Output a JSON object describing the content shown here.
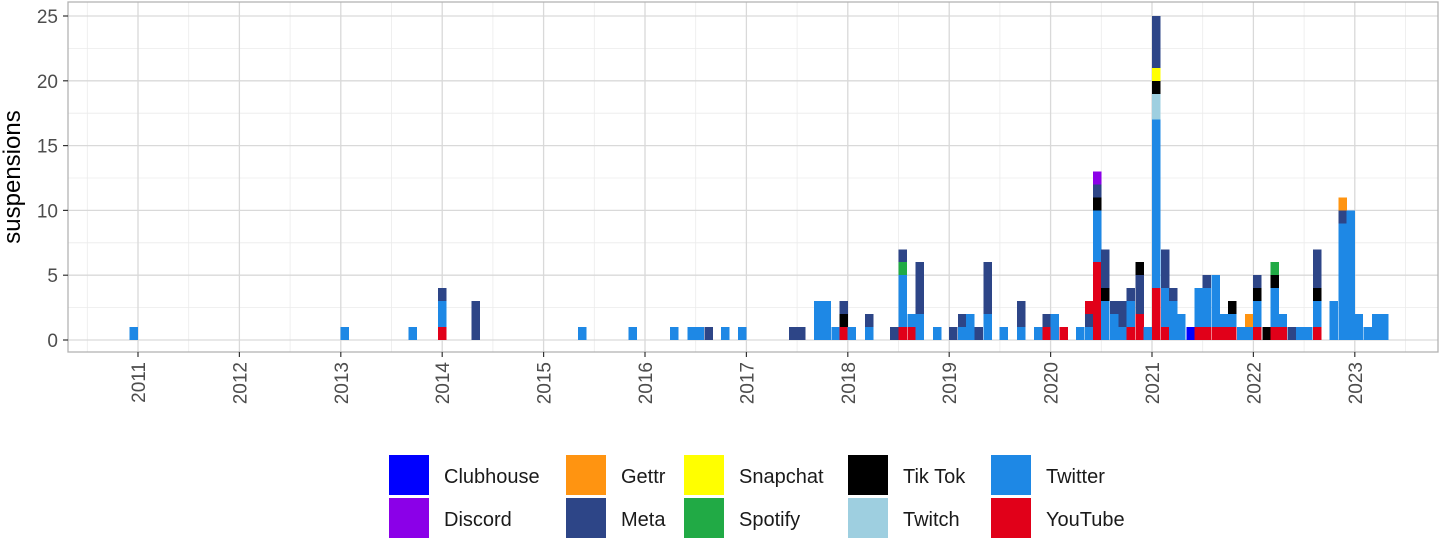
{
  "chart_data": {
    "type": "bar",
    "stacked": true,
    "title": "",
    "xlabel": "",
    "ylabel": "suspensions",
    "ylim": [
      0,
      25
    ],
    "xlim": [
      2010.4,
      2023.8
    ],
    "y_ticks": [
      "0",
      "5",
      "10",
      "15",
      "20",
      "25"
    ],
    "x_ticks": [
      "2011",
      "2012",
      "2013",
      "2014",
      "2015",
      "2016",
      "2017",
      "2018",
      "2019",
      "2020",
      "2021",
      "2022",
      "2023"
    ],
    "grid": true,
    "legend_position": "bottom",
    "platforms": [
      {
        "name": "Clubhouse",
        "color": "#0000ff"
      },
      {
        "name": "Discord",
        "color": "#8b00e8"
      },
      {
        "name": "Gettr",
        "color": "#ff9411"
      },
      {
        "name": "Meta",
        "color": "#2d4587"
      },
      {
        "name": "Snapchat",
        "color": "#ffff00"
      },
      {
        "name": "Spotify",
        "color": "#21aa45"
      },
      {
        "name": "Tik Tok",
        "color": "#000000"
      },
      {
        "name": "Twitch",
        "color": "#9ecfe0"
      },
      {
        "name": "Twitter",
        "color": "#1e88e5"
      },
      {
        "name": "YouTube",
        "color": "#e10019"
      }
    ],
    "bars": [
      {
        "x": 2010.96,
        "stack": [
          [
            "Twitter",
            1
          ]
        ]
      },
      {
        "x": 2013.04,
        "stack": [
          [
            "Twitter",
            1
          ]
        ]
      },
      {
        "x": 2013.71,
        "stack": [
          [
            "Twitter",
            1
          ]
        ]
      },
      {
        "x": 2014.0,
        "stack": [
          [
            "YouTube",
            1
          ],
          [
            "Twitter",
            2
          ],
          [
            "Meta",
            1
          ]
        ]
      },
      {
        "x": 2014.33,
        "stack": [
          [
            "Meta",
            3
          ]
        ]
      },
      {
        "x": 2015.38,
        "stack": [
          [
            "Twitter",
            1
          ]
        ]
      },
      {
        "x": 2015.88,
        "stack": [
          [
            "Twitter",
            1
          ]
        ]
      },
      {
        "x": 2016.29,
        "stack": [
          [
            "Twitter",
            1
          ]
        ]
      },
      {
        "x": 2016.46,
        "stack": [
          [
            "Twitter",
            1
          ]
        ]
      },
      {
        "x": 2016.54,
        "stack": [
          [
            "Twitter",
            1
          ]
        ]
      },
      {
        "x": 2016.63,
        "stack": [
          [
            "Meta",
            1
          ]
        ]
      },
      {
        "x": 2016.79,
        "stack": [
          [
            "Twitter",
            1
          ]
        ]
      },
      {
        "x": 2016.96,
        "stack": [
          [
            "Twitter",
            1
          ]
        ]
      },
      {
        "x": 2017.46,
        "stack": [
          [
            "Meta",
            1
          ]
        ]
      },
      {
        "x": 2017.54,
        "stack": [
          [
            "Meta",
            1
          ]
        ]
      },
      {
        "x": 2017.71,
        "stack": [
          [
            "Twitter",
            3
          ]
        ]
      },
      {
        "x": 2017.79,
        "stack": [
          [
            "Twitter",
            3
          ]
        ]
      },
      {
        "x": 2017.88,
        "stack": [
          [
            "Twitter",
            1
          ]
        ]
      },
      {
        "x": 2017.96,
        "stack": [
          [
            "YouTube",
            1
          ],
          [
            "Tik Tok",
            1
          ],
          [
            "Meta",
            1
          ]
        ]
      },
      {
        "x": 2018.04,
        "stack": [
          [
            "Twitter",
            1
          ]
        ]
      },
      {
        "x": 2018.21,
        "stack": [
          [
            "Twitter",
            1
          ],
          [
            "Meta",
            1
          ]
        ]
      },
      {
        "x": 2018.46,
        "stack": [
          [
            "Meta",
            1
          ]
        ]
      },
      {
        "x": 2018.54,
        "stack": [
          [
            "YouTube",
            1
          ],
          [
            "Twitter",
            4
          ],
          [
            "Spotify",
            1
          ],
          [
            "Meta",
            1
          ]
        ]
      },
      {
        "x": 2018.63,
        "stack": [
          [
            "YouTube",
            1
          ],
          [
            "Twitter",
            1
          ]
        ]
      },
      {
        "x": 2018.71,
        "stack": [
          [
            "Twitter",
            2
          ],
          [
            "Meta",
            4
          ]
        ]
      },
      {
        "x": 2018.88,
        "stack": [
          [
            "Twitter",
            1
          ]
        ]
      },
      {
        "x": 2019.04,
        "stack": [
          [
            "Meta",
            1
          ]
        ]
      },
      {
        "x": 2019.13,
        "stack": [
          [
            "Twitter",
            1
          ],
          [
            "Meta",
            1
          ]
        ]
      },
      {
        "x": 2019.21,
        "stack": [
          [
            "Twitter",
            2
          ]
        ]
      },
      {
        "x": 2019.29,
        "stack": [
          [
            "Meta",
            1
          ]
        ]
      },
      {
        "x": 2019.38,
        "stack": [
          [
            "Twitter",
            2
          ],
          [
            "Meta",
            4
          ]
        ]
      },
      {
        "x": 2019.54,
        "stack": [
          [
            "Twitter",
            1
          ]
        ]
      },
      {
        "x": 2019.71,
        "stack": [
          [
            "Twitter",
            1
          ],
          [
            "Meta",
            2
          ]
        ]
      },
      {
        "x": 2019.88,
        "stack": [
          [
            "Twitter",
            1
          ]
        ]
      },
      {
        "x": 2019.96,
        "stack": [
          [
            "YouTube",
            1
          ],
          [
            "Meta",
            1
          ]
        ]
      },
      {
        "x": 2020.04,
        "stack": [
          [
            "Twitter",
            2
          ]
        ]
      },
      {
        "x": 2020.13,
        "stack": [
          [
            "YouTube",
            1
          ]
        ]
      },
      {
        "x": 2020.29,
        "stack": [
          [
            "Twitter",
            1
          ]
        ]
      },
      {
        "x": 2020.38,
        "stack": [
          [
            "Twitter",
            1
          ],
          [
            "Meta",
            1
          ],
          [
            "YouTube",
            1
          ]
        ]
      },
      {
        "x": 2020.46,
        "stack": [
          [
            "YouTube",
            6
          ],
          [
            "Twitter",
            4
          ],
          [
            "Tik Tok",
            1
          ],
          [
            "Meta",
            1
          ],
          [
            "Discord",
            1
          ]
        ]
      },
      {
        "x": 2020.54,
        "stack": [
          [
            "Twitter",
            3
          ],
          [
            "Tik Tok",
            1
          ],
          [
            "Meta",
            3
          ]
        ]
      },
      {
        "x": 2020.63,
        "stack": [
          [
            "Twitter",
            2
          ],
          [
            "Meta",
            1
          ]
        ]
      },
      {
        "x": 2020.71,
        "stack": [
          [
            "Twitter",
            1
          ],
          [
            "Meta",
            2
          ]
        ]
      },
      {
        "x": 2020.79,
        "stack": [
          [
            "YouTube",
            1
          ],
          [
            "Twitter",
            2
          ],
          [
            "Meta",
            1
          ]
        ]
      },
      {
        "x": 2020.88,
        "stack": [
          [
            "YouTube",
            2
          ],
          [
            "Meta",
            3
          ],
          [
            "Tik Tok",
            1
          ]
        ]
      },
      {
        "x": 2020.96,
        "stack": [
          [
            "Twitter",
            1
          ]
        ]
      },
      {
        "x": 2021.04,
        "stack": [
          [
            "YouTube",
            4
          ],
          [
            "Twitter",
            13
          ],
          [
            "Twitch",
            2
          ],
          [
            "Tik Tok",
            1
          ],
          [
            "Snapchat",
            1
          ],
          [
            "Meta",
            4
          ]
        ]
      },
      {
        "x": 2021.13,
        "stack": [
          [
            "YouTube",
            1
          ],
          [
            "Twitter",
            3
          ],
          [
            "Meta",
            3
          ]
        ]
      },
      {
        "x": 2021.21,
        "stack": [
          [
            "Twitter",
            3
          ],
          [
            "Meta",
            1
          ]
        ]
      },
      {
        "x": 2021.29,
        "stack": [
          [
            "Twitter",
            2
          ]
        ]
      },
      {
        "x": 2021.38,
        "stack": [
          [
            "Clubhouse",
            1
          ]
        ]
      },
      {
        "x": 2021.46,
        "stack": [
          [
            "YouTube",
            1
          ],
          [
            "Twitter",
            3
          ]
        ]
      },
      {
        "x": 2021.54,
        "stack": [
          [
            "YouTube",
            1
          ],
          [
            "Twitter",
            3
          ],
          [
            "Meta",
            1
          ]
        ]
      },
      {
        "x": 2021.63,
        "stack": [
          [
            "YouTube",
            1
          ],
          [
            "Twitter",
            4
          ]
        ]
      },
      {
        "x": 2021.71,
        "stack": [
          [
            "YouTube",
            1
          ],
          [
            "Twitter",
            1
          ]
        ]
      },
      {
        "x": 2021.79,
        "stack": [
          [
            "YouTube",
            1
          ],
          [
            "Twitter",
            1
          ],
          [
            "Tik Tok",
            1
          ]
        ]
      },
      {
        "x": 2021.88,
        "stack": [
          [
            "Twitter",
            1
          ]
        ]
      },
      {
        "x": 2021.96,
        "stack": [
          [
            "Twitter",
            1
          ],
          [
            "Gettr",
            1
          ]
        ]
      },
      {
        "x": 2022.04,
        "stack": [
          [
            "YouTube",
            1
          ],
          [
            "Twitter",
            2
          ],
          [
            "Tik Tok",
            1
          ],
          [
            "Meta",
            1
          ]
        ]
      },
      {
        "x": 2022.13,
        "stack": [
          [
            "Tik Tok",
            1
          ]
        ]
      },
      {
        "x": 2022.21,
        "stack": [
          [
            "YouTube",
            1
          ],
          [
            "Twitter",
            3
          ],
          [
            "Tik Tok",
            1
          ],
          [
            "Spotify",
            1
          ]
        ]
      },
      {
        "x": 2022.29,
        "stack": [
          [
            "YouTube",
            1
          ],
          [
            "Twitter",
            1
          ]
        ]
      },
      {
        "x": 2022.38,
        "stack": [
          [
            "Meta",
            1
          ]
        ]
      },
      {
        "x": 2022.46,
        "stack": [
          [
            "Twitter",
            1
          ]
        ]
      },
      {
        "x": 2022.54,
        "stack": [
          [
            "Twitter",
            1
          ]
        ]
      },
      {
        "x": 2022.63,
        "stack": [
          [
            "YouTube",
            1
          ],
          [
            "Twitter",
            2
          ],
          [
            "Tik Tok",
            1
          ],
          [
            "Meta",
            3
          ]
        ]
      },
      {
        "x": 2022.79,
        "stack": [
          [
            "Twitter",
            3
          ]
        ]
      },
      {
        "x": 2022.88,
        "stack": [
          [
            "Twitter",
            9
          ],
          [
            "Meta",
            1
          ],
          [
            "Gettr",
            1
          ]
        ]
      },
      {
        "x": 2022.96,
        "stack": [
          [
            "Twitter",
            10
          ]
        ]
      },
      {
        "x": 2023.04,
        "stack": [
          [
            "Twitter",
            2
          ]
        ]
      },
      {
        "x": 2023.13,
        "stack": [
          [
            "Twitter",
            1
          ]
        ]
      },
      {
        "x": 2023.21,
        "stack": [
          [
            "Twitter",
            2
          ]
        ]
      },
      {
        "x": 2023.29,
        "stack": [
          [
            "Twitter",
            2
          ]
        ]
      }
    ]
  }
}
